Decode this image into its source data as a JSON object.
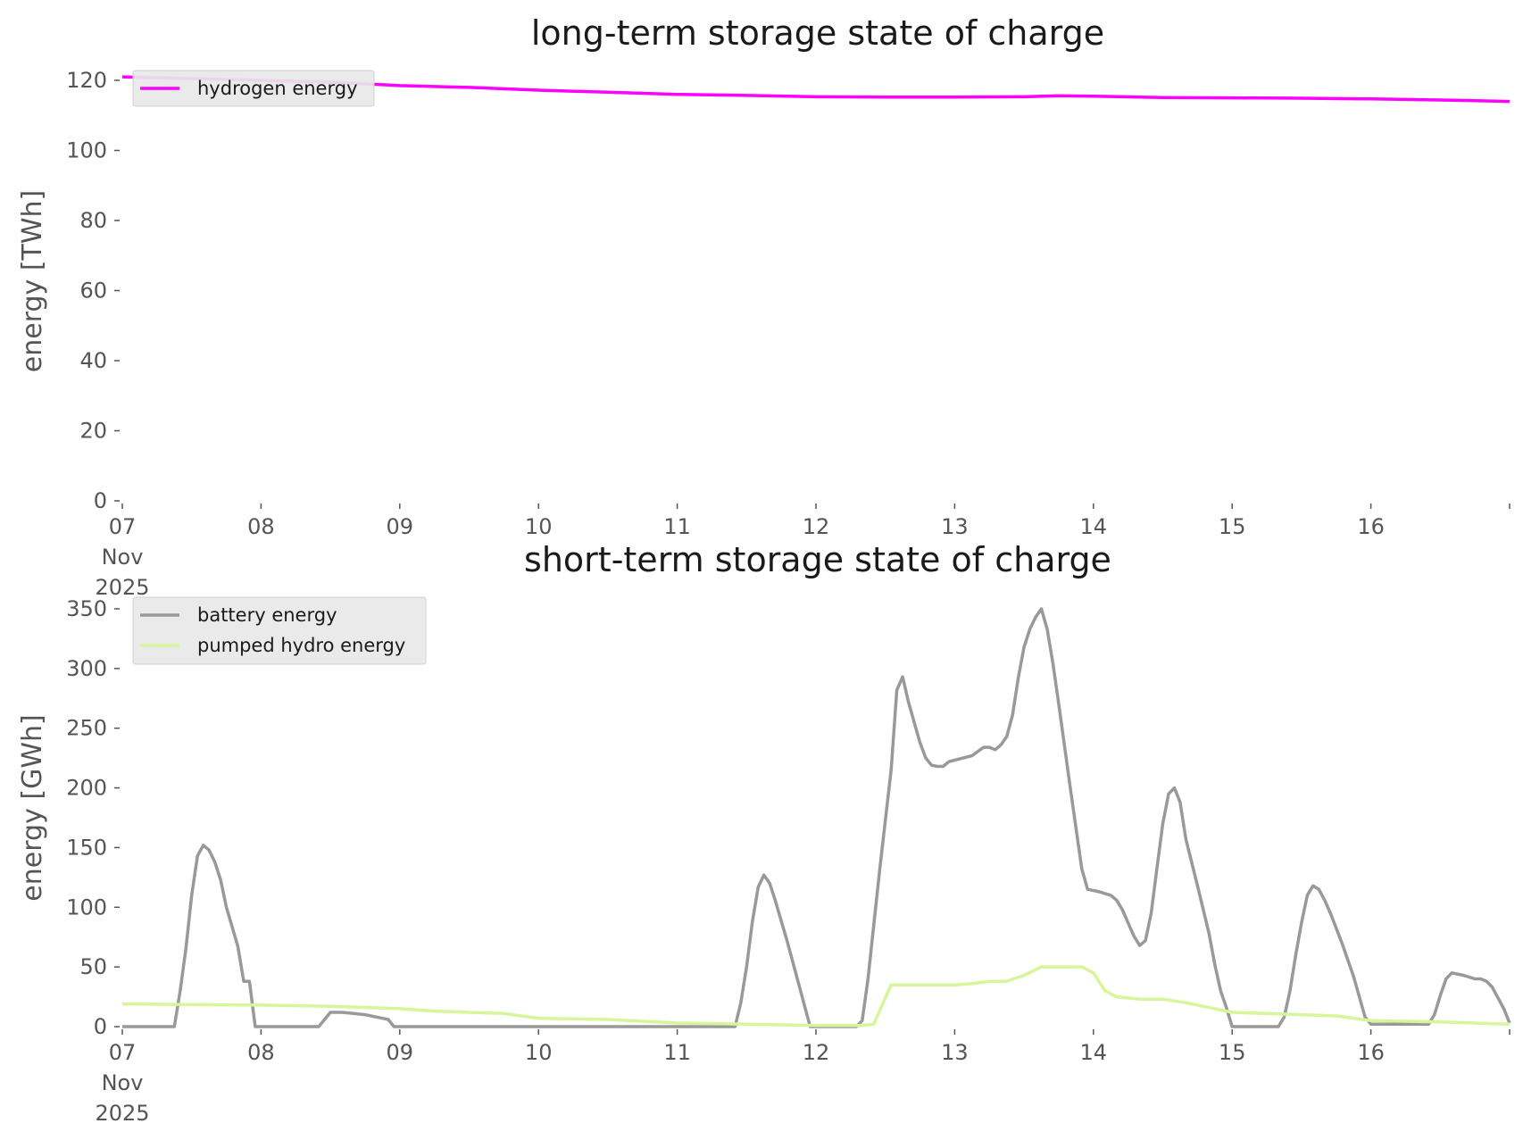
{
  "chart_data": [
    {
      "type": "line",
      "title": "long-term storage state of charge",
      "ylabel": "energy [TWh]",
      "ylim": [
        0,
        120
      ],
      "yticks": [
        0,
        20,
        40,
        60,
        80,
        100,
        120
      ],
      "xlim": [
        "2025-11-07",
        "2025-11-17"
      ],
      "xtick_labels": [
        [
          "07",
          "Nov",
          "2025"
        ],
        [
          "08"
        ],
        [
          "09"
        ],
        [
          "10"
        ],
        [
          "11"
        ],
        [
          "12"
        ],
        [
          "13"
        ],
        [
          "14"
        ],
        [
          "15"
        ],
        [
          "16"
        ],
        [
          ""
        ]
      ],
      "grid": false,
      "legend": "upper-left",
      "series": [
        {
          "name": "hydrogen energy",
          "color": "#ff00ff",
          "points": [
            [
              "2025-11-07 00:00",
              121.0
            ],
            [
              "2025-11-07 12:00",
              120.5
            ],
            [
              "2025-11-08 00:00",
              120.0
            ],
            [
              "2025-11-08 12:00",
              119.5
            ],
            [
              "2025-11-09 00:00",
              118.5
            ],
            [
              "2025-11-09 12:00",
              118.0
            ],
            [
              "2025-11-10 00:00",
              117.2
            ],
            [
              "2025-11-10 12:00",
              116.6
            ],
            [
              "2025-11-11 00:00",
              116.0
            ],
            [
              "2025-11-11 12:00",
              115.7
            ],
            [
              "2025-11-12 00:00",
              115.3
            ],
            [
              "2025-11-12 12:00",
              115.2
            ],
            [
              "2025-11-13 00:00",
              115.2
            ],
            [
              "2025-11-13 12:00",
              115.3
            ],
            [
              "2025-11-13 18:00",
              115.6
            ],
            [
              "2025-11-14 00:00",
              115.5
            ],
            [
              "2025-11-14 12:00",
              115.1
            ],
            [
              "2025-11-15 00:00",
              115.0
            ],
            [
              "2025-11-15 12:00",
              114.9
            ],
            [
              "2025-11-16 00:00",
              114.7
            ],
            [
              "2025-11-16 12:00",
              114.4
            ],
            [
              "2025-11-17 00:00",
              114.0
            ]
          ]
        }
      ]
    },
    {
      "type": "line",
      "title": "short-term storage state of charge",
      "ylabel": "energy [GWh]",
      "ylim": [
        0,
        350
      ],
      "yticks": [
        0,
        50,
        100,
        150,
        200,
        250,
        300,
        350
      ],
      "xlim": [
        "2025-11-07",
        "2025-11-17"
      ],
      "xtick_labels": [
        [
          "07",
          "Nov",
          "2025"
        ],
        [
          "08"
        ],
        [
          "09"
        ],
        [
          "10"
        ],
        [
          "11"
        ],
        [
          "12"
        ],
        [
          "13"
        ],
        [
          "14"
        ],
        [
          "15"
        ],
        [
          "16"
        ],
        [
          ""
        ]
      ],
      "grid": false,
      "legend": "upper-left",
      "series": [
        {
          "name": "battery energy",
          "color": "#999999",
          "points": [
            [
              "2025-11-07 00:00",
              0
            ],
            [
              "2025-11-07 09:00",
              0
            ],
            [
              "2025-11-07 10:00",
              30
            ],
            [
              "2025-11-07 11:00",
              65
            ],
            [
              "2025-11-07 12:00",
              110
            ],
            [
              "2025-11-07 13:00",
              143
            ],
            [
              "2025-11-07 14:00",
              152
            ],
            [
              "2025-11-07 15:00",
              148
            ],
            [
              "2025-11-07 16:00",
              138
            ],
            [
              "2025-11-07 17:00",
              123
            ],
            [
              "2025-11-07 18:00",
              100
            ],
            [
              "2025-11-07 20:00",
              67
            ],
            [
              "2025-11-07 21:00",
              38
            ],
            [
              "2025-11-07 22:00",
              38
            ],
            [
              "2025-11-07 23:00",
              0
            ],
            [
              "2025-11-08 10:00",
              0
            ],
            [
              "2025-11-08 12:00",
              12
            ],
            [
              "2025-11-08 14:00",
              12
            ],
            [
              "2025-11-08 16:00",
              11
            ],
            [
              "2025-11-08 18:00",
              10
            ],
            [
              "2025-11-08 20:00",
              8
            ],
            [
              "2025-11-08 22:00",
              6
            ],
            [
              "2025-11-08 23:00",
              0
            ],
            [
              "2025-11-11 10:00",
              0
            ],
            [
              "2025-11-11 11:00",
              20
            ],
            [
              "2025-11-11 12:00",
              50
            ],
            [
              "2025-11-11 13:00",
              88
            ],
            [
              "2025-11-11 14:00",
              117
            ],
            [
              "2025-11-11 15:00",
              127
            ],
            [
              "2025-11-11 16:00",
              120
            ],
            [
              "2025-11-11 17:00",
              105
            ],
            [
              "2025-11-11 19:00",
              72
            ],
            [
              "2025-11-11 21:00",
              36
            ],
            [
              "2025-11-11 23:00",
              0
            ],
            [
              "2025-11-12 07:00",
              0
            ],
            [
              "2025-11-12 08:00",
              5
            ],
            [
              "2025-11-12 09:00",
              40
            ],
            [
              "2025-11-12 11:00",
              130
            ],
            [
              "2025-11-12 13:00",
              215
            ],
            [
              "2025-11-12 14:00",
              282
            ],
            [
              "2025-11-12 15:00",
              293
            ],
            [
              "2025-11-12 16:00",
              272
            ],
            [
              "2025-11-12 18:00",
              238
            ],
            [
              "2025-11-12 19:00",
              225
            ],
            [
              "2025-11-12 20:00",
              219
            ],
            [
              "2025-11-12 21:00",
              218
            ],
            [
              "2025-11-12 22:00",
              218
            ],
            [
              "2025-11-12 23:00",
              222
            ],
            [
              "2025-11-13 03:00",
              227
            ],
            [
              "2025-11-13 05:00",
              234
            ],
            [
              "2025-11-13 06:00",
              234
            ],
            [
              "2025-11-13 07:00",
              232
            ],
            [
              "2025-11-13 08:00",
              236
            ],
            [
              "2025-11-13 09:00",
              243
            ],
            [
              "2025-11-13 10:00",
              261
            ],
            [
              "2025-11-13 11:00",
              292
            ],
            [
              "2025-11-13 12:00",
              318
            ],
            [
              "2025-11-13 13:00",
              333
            ],
            [
              "2025-11-13 14:00",
              343
            ],
            [
              "2025-11-13 15:00",
              350
            ],
            [
              "2025-11-13 16:00",
              333
            ],
            [
              "2025-11-13 17:00",
              304
            ],
            [
              "2025-11-13 18:00",
              270
            ],
            [
              "2025-11-13 20:00",
              200
            ],
            [
              "2025-11-13 22:00",
              132
            ],
            [
              "2025-11-13 23:00",
              115
            ],
            [
              "2025-11-14 01:00",
              113
            ],
            [
              "2025-11-14 03:00",
              110
            ],
            [
              "2025-11-14 04:00",
              106
            ],
            [
              "2025-11-14 05:00",
              98
            ],
            [
              "2025-11-14 06:00",
              87
            ],
            [
              "2025-11-14 07:00",
              76
            ],
            [
              "2025-11-14 08:00",
              68
            ],
            [
              "2025-11-14 09:00",
              72
            ],
            [
              "2025-11-14 10:00",
              95
            ],
            [
              "2025-11-14 11:00",
              133
            ],
            [
              "2025-11-14 12:00",
              170
            ],
            [
              "2025-11-14 13:00",
              195
            ],
            [
              "2025-11-14 14:00",
              200
            ],
            [
              "2025-11-14 15:00",
              188
            ],
            [
              "2025-11-14 16:00",
              157
            ],
            [
              "2025-11-14 18:00",
              118
            ],
            [
              "2025-11-14 20:00",
              78
            ],
            [
              "2025-11-14 21:00",
              52
            ],
            [
              "2025-11-14 22:00",
              30
            ],
            [
              "2025-11-14 23:00",
              16
            ],
            [
              "2025-11-15 00:00",
              0
            ],
            [
              "2025-11-15 08:00",
              0
            ],
            [
              "2025-11-15 09:00",
              8
            ],
            [
              "2025-11-15 10:00",
              30
            ],
            [
              "2025-11-15 11:00",
              60
            ],
            [
              "2025-11-15 12:00",
              87
            ],
            [
              "2025-11-15 13:00",
              110
            ],
            [
              "2025-11-15 14:00",
              118
            ],
            [
              "2025-11-15 15:00",
              115
            ],
            [
              "2025-11-15 16:00",
              106
            ],
            [
              "2025-11-15 17:00",
              95
            ],
            [
              "2025-11-15 19:00",
              70
            ],
            [
              "2025-11-15 21:00",
              42
            ],
            [
              "2025-11-15 23:00",
              8
            ],
            [
              "2025-11-16 00:00",
              2
            ],
            [
              "2025-11-16 10:00",
              2
            ],
            [
              "2025-11-16 11:00",
              10
            ],
            [
              "2025-11-16 12:00",
              26
            ],
            [
              "2025-11-16 13:00",
              40
            ],
            [
              "2025-11-16 14:00",
              45
            ],
            [
              "2025-11-16 16:00",
              43
            ],
            [
              "2025-11-16 18:00",
              40
            ],
            [
              "2025-11-16 19:00",
              40
            ],
            [
              "2025-11-16 20:00",
              38
            ],
            [
              "2025-11-16 21:00",
              33
            ],
            [
              "2025-11-16 23:00",
              15
            ],
            [
              "2025-11-17 00:00",
              3
            ]
          ]
        },
        {
          "name": "pumped hydro energy",
          "color": "#d7f59a",
          "points": [
            [
              "2025-11-07 00:00",
              19
            ],
            [
              "2025-11-08 00:00",
              18
            ],
            [
              "2025-11-08 12:00",
              17
            ],
            [
              "2025-11-09 00:00",
              15
            ],
            [
              "2025-11-09 06:00",
              13
            ],
            [
              "2025-11-09 12:00",
              12
            ],
            [
              "2025-11-09 18:00",
              11
            ],
            [
              "2025-11-10 00:00",
              7
            ],
            [
              "2025-11-10 12:00",
              6
            ],
            [
              "2025-11-11 00:00",
              3
            ],
            [
              "2025-11-11 12:00",
              2
            ],
            [
              "2025-11-12 00:00",
              1
            ],
            [
              "2025-11-12 08:00",
              1
            ],
            [
              "2025-11-12 10:00",
              2
            ],
            [
              "2025-11-12 13:00",
              35
            ],
            [
              "2025-11-12 18:00",
              35
            ],
            [
              "2025-11-13 00:00",
              35
            ],
            [
              "2025-11-13 03:00",
              36
            ],
            [
              "2025-11-13 06:00",
              38
            ],
            [
              "2025-11-13 09:00",
              38
            ],
            [
              "2025-11-13 12:00",
              43
            ],
            [
              "2025-11-13 15:00",
              50
            ],
            [
              "2025-11-13 18:00",
              50
            ],
            [
              "2025-11-13 22:00",
              50
            ],
            [
              "2025-11-14 00:00",
              45
            ],
            [
              "2025-11-14 02:00",
              30
            ],
            [
              "2025-11-14 04:00",
              25
            ],
            [
              "2025-11-14 08:00",
              23
            ],
            [
              "2025-11-14 12:00",
              23
            ],
            [
              "2025-11-14 16:00",
              20
            ],
            [
              "2025-11-15 00:00",
              12
            ],
            [
              "2025-11-15 12:00",
              10
            ],
            [
              "2025-11-15 18:00",
              9
            ],
            [
              "2025-11-16 00:00",
              5
            ],
            [
              "2025-11-16 12:00",
              4
            ],
            [
              "2025-11-17 00:00",
              2
            ]
          ]
        }
      ]
    }
  ]
}
